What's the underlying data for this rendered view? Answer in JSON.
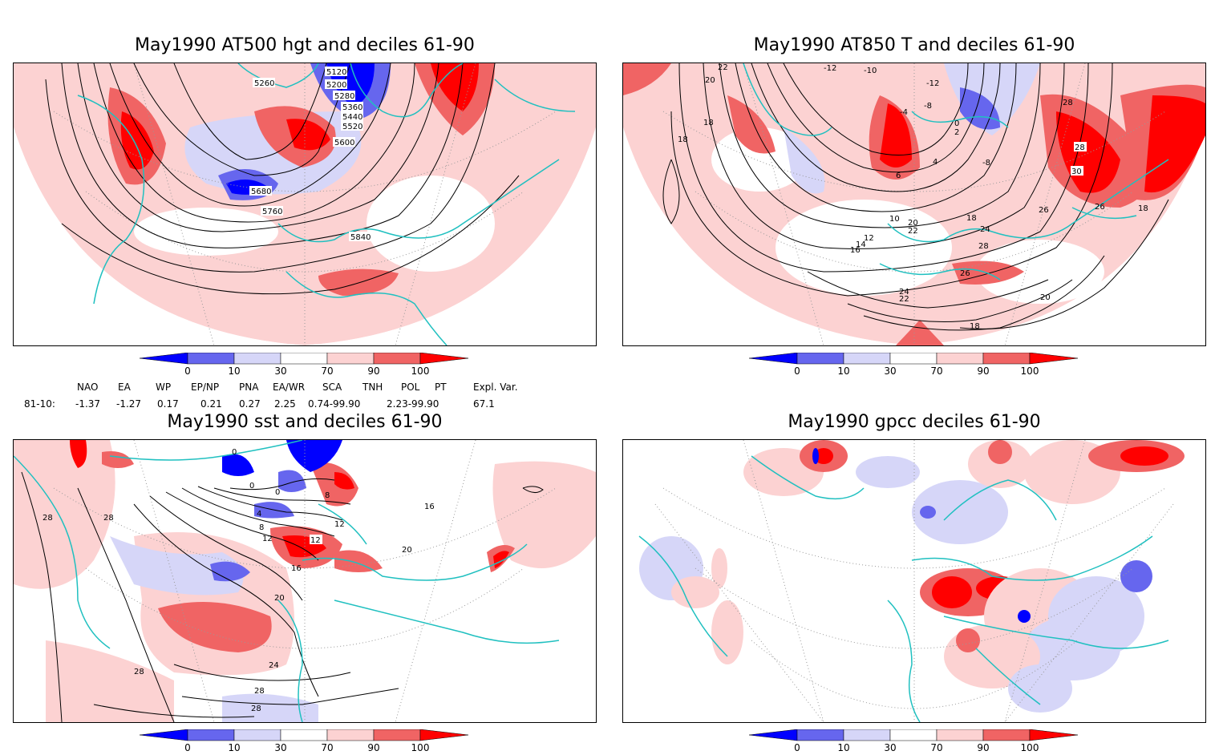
{
  "panels": [
    {
      "id": "p1",
      "title": "May1990 AT500 hgt and deciles 61-90",
      "contour_labels": [
        "5120",
        "5200",
        "5260",
        "5280",
        "5360",
        "5440",
        "5520",
        "5600",
        "5680",
        "5760",
        "5840"
      ]
    },
    {
      "id": "p2",
      "title": "May1990 AT850 T and deciles 61-90",
      "contour_labels": [
        "22",
        "20",
        "18",
        "18",
        "-12",
        "-10",
        "-12",
        "-8",
        "-4",
        "0",
        "2",
        "4",
        "6",
        "-8",
        "10",
        "12",
        "14",
        "16",
        "18",
        "20",
        "22",
        "24",
        "26",
        "28",
        "28",
        "30",
        "26",
        "26",
        "18",
        "24",
        "22",
        "20",
        "18",
        "28"
      ]
    },
    {
      "id": "p3",
      "title": "May1990 sst and deciles 61-90",
      "contour_labels": [
        "28",
        "28",
        "0",
        "0",
        "0",
        "4",
        "8",
        "8",
        "12",
        "12",
        "12",
        "16",
        "20",
        "24",
        "28",
        "28",
        "28",
        "20",
        "16"
      ]
    },
    {
      "id": "p4",
      "title": "May1990 gpcc deciles 61-90",
      "contour_labels": []
    }
  ],
  "colorbar": {
    "ticks": [
      "0",
      "10",
      "30",
      "70",
      "90",
      "100"
    ],
    "colors": {
      "deep_blue": "#0000ff",
      "mid_blue": "#6666ee",
      "light_blue": "#d6d6f8",
      "white": "#ffffff",
      "light_red": "#fcd2d2",
      "mid_red": "#f06464",
      "deep_red": "#ff0000"
    }
  },
  "indices": {
    "headers": [
      "NAO",
      "EA",
      "WP",
      "EP/NP",
      "PNA",
      "EA/WR",
      "SCA",
      "TNH",
      "POL",
      "PT",
      "Expl. Var."
    ],
    "row_label": "81-10:",
    "values": [
      "-1.37",
      "-1.27",
      "0.17",
      "0.21",
      "0.27",
      "2.25",
      "0.74-99.90",
      "",
      "2.23-99.90",
      "",
      "67.1"
    ]
  },
  "map_colors": {
    "coast": "#20c0c0",
    "contour": "#000000",
    "grid": "#999999"
  }
}
